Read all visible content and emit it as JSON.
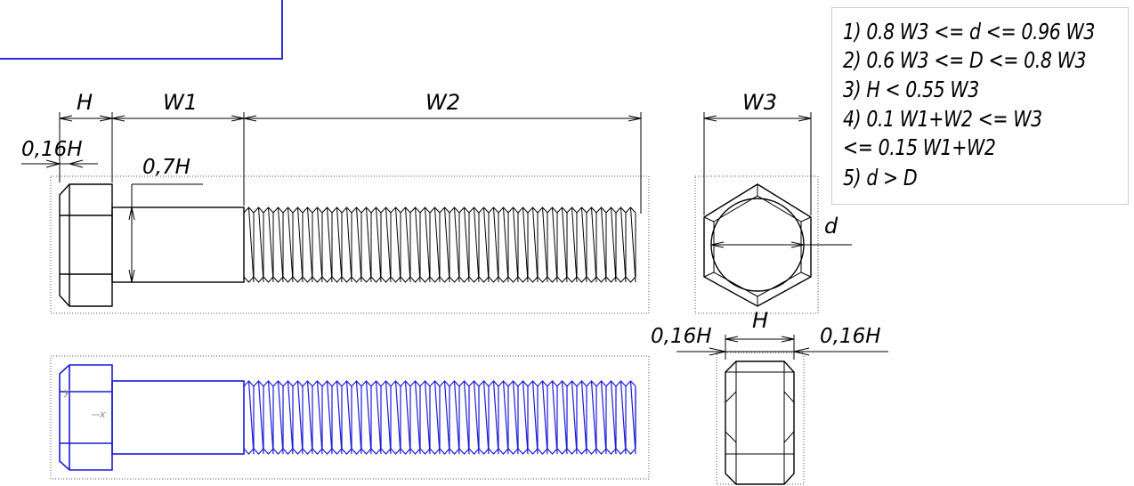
{
  "drawing": {
    "colors": {
      "ink": "#000000",
      "selected": "#1a1ad6",
      "frame": "#2b2bd9",
      "dotted": "#555555",
      "note_border": "#cfcfcf"
    },
    "side_view_labels": {
      "H": "H",
      "W1": "W1",
      "W2": "W2",
      "head_chamfer": "0,16H",
      "shank": "0,7H"
    },
    "end_view_labels": {
      "W3": "W3",
      "d": "d"
    },
    "thickness_view_labels": {
      "H": "H",
      "left_chamfer": "0,16H",
      "right_chamfer": "0,16H"
    },
    "axis_labels": {
      "y": "y",
      "x": "x"
    }
  },
  "notes": {
    "lines": [
      "1) 0.8 W3 <= d <= 0.96 W3",
      "2) 0.6 W3 <= D <= 0.8 W3",
      "3) H < 0.55 W3",
      "4) 0.1 W1+W2 <= W3",
      "<= 0.15 W1+W2",
      "5) d > D"
    ]
  }
}
